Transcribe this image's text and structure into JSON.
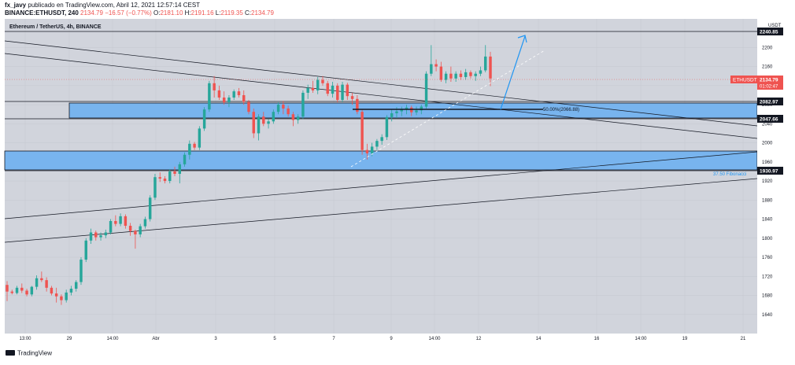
{
  "header": {
    "author": "fx_javy",
    "published": "publicado en TradingView.com, Abril 12, 2021 12:57:14 CEST",
    "symbol": "BINANCE:ETHUSDT, 240",
    "last": "2134.79",
    "change": "−16.57 (−0.77%)",
    "o_label": "O:",
    "o": "2181.10",
    "h_label": "H:",
    "h": "2191.16",
    "l_label": "L:",
    "l": "2119.35",
    "c_label": "C:",
    "c": "2134.79"
  },
  "colors": {
    "up": "#26a69a",
    "down": "#ef5350",
    "zone": "#78b4ee",
    "accent": "#2196f3",
    "bg": "#d1d4dc",
    "grid": "#c5c8d0",
    "line": "#131722"
  },
  "chart_data": {
    "type": "candlestick",
    "title": "Ethereum / TetherUS, 4h, BINANCE",
    "currency": "USDT",
    "ylim": [
      1600,
      2260
    ],
    "y_ticks": [
      1640,
      1680,
      1720,
      1760,
      1800,
      1840,
      1880,
      1920,
      1960,
      2000,
      2040,
      2080,
      2120,
      2160,
      2200
    ],
    "x_ticks": [
      "13:00",
      "29",
      "14:00",
      "Abr",
      "3",
      "5",
      "7",
      "9",
      "14:00",
      "12",
      "14",
      "16",
      "14:00",
      "19",
      "21"
    ],
    "price_labels": {
      "top": "2240.85",
      "symbol": "ETHUSDT",
      "last": "2134.79",
      "countdown": "01:02:47",
      "zone_top": "2082.97",
      "zone_bottom": "2047.66",
      "support": "1930.97"
    },
    "annotations": {
      "fib50": "50.00%(2066.88)",
      "fib375": "37.50 Fibonacci"
    },
    "candles": [
      [
        1702,
        1710,
        1668,
        1688
      ],
      [
        1688,
        1692,
        1682,
        1685
      ],
      [
        1685,
        1700,
        1682,
        1696
      ],
      [
        1696,
        1705,
        1685,
        1690
      ],
      [
        1690,
        1694,
        1678,
        1682
      ],
      [
        1682,
        1700,
        1678,
        1698
      ],
      [
        1698,
        1722,
        1692,
        1716
      ],
      [
        1716,
        1730,
        1708,
        1712
      ],
      [
        1712,
        1718,
        1688,
        1696
      ],
      [
        1696,
        1700,
        1680,
        1684
      ],
      [
        1684,
        1696,
        1665,
        1678
      ],
      [
        1678,
        1682,
        1660,
        1670
      ],
      [
        1670,
        1692,
        1665,
        1686
      ],
      [
        1686,
        1700,
        1680,
        1694
      ],
      [
        1694,
        1712,
        1688,
        1708
      ],
      [
        1708,
        1760,
        1702,
        1755
      ],
      [
        1755,
        1800,
        1750,
        1795
      ],
      [
        1795,
        1820,
        1788,
        1812
      ],
      [
        1812,
        1816,
        1795,
        1802
      ],
      [
        1802,
        1812,
        1795,
        1806
      ],
      [
        1806,
        1818,
        1800,
        1812
      ],
      [
        1812,
        1840,
        1808,
        1836
      ],
      [
        1836,
        1848,
        1825,
        1830
      ],
      [
        1830,
        1852,
        1825,
        1846
      ],
      [
        1846,
        1850,
        1820,
        1826
      ],
      [
        1826,
        1832,
        1805,
        1815
      ],
      [
        1815,
        1818,
        1778,
        1808
      ],
      [
        1808,
        1830,
        1802,
        1825
      ],
      [
        1825,
        1845,
        1820,
        1840
      ],
      [
        1840,
        1890,
        1835,
        1885
      ],
      [
        1885,
        1935,
        1880,
        1928
      ],
      [
        1928,
        1938,
        1918,
        1925
      ],
      [
        1925,
        1930,
        1915,
        1920
      ],
      [
        1920,
        1945,
        1915,
        1940
      ],
      [
        1940,
        1950,
        1930,
        1935
      ],
      [
        1935,
        1960,
        1915,
        1955
      ],
      [
        1955,
        1980,
        1950,
        1975
      ],
      [
        1975,
        2005,
        1965,
        1998
      ],
      [
        1998,
        2002,
        1985,
        1990
      ],
      [
        1990,
        2035,
        1985,
        2030
      ],
      [
        2030,
        2075,
        2025,
        2070
      ],
      [
        2070,
        2130,
        2065,
        2125
      ],
      [
        2125,
        2140,
        2095,
        2110
      ],
      [
        2110,
        2120,
        2090,
        2095
      ],
      [
        2095,
        2108,
        2080,
        2085
      ],
      [
        2085,
        2100,
        2075,
        2095
      ],
      [
        2095,
        2112,
        2090,
        2108
      ],
      [
        2108,
        2115,
        2095,
        2100
      ],
      [
        2100,
        2110,
        2080,
        2086
      ],
      [
        2086,
        2090,
        2060,
        2065
      ],
      [
        2065,
        2072,
        2010,
        2020
      ],
      [
        2020,
        2060,
        2005,
        2055
      ],
      [
        2055,
        2065,
        2035,
        2040
      ],
      [
        2040,
        2050,
        2030,
        2045
      ],
      [
        2045,
        2070,
        2040,
        2065
      ],
      [
        2065,
        2085,
        2060,
        2080
      ],
      [
        2080,
        2088,
        2060,
        2072
      ],
      [
        2072,
        2078,
        2055,
        2060
      ],
      [
        2060,
        2065,
        2035,
        2048
      ],
      [
        2048,
        2060,
        2040,
        2055
      ],
      [
        2055,
        2110,
        2050,
        2105
      ],
      [
        2105,
        2122,
        2092,
        2115
      ],
      [
        2115,
        2130,
        2105,
        2110
      ],
      [
        2110,
        2138,
        2102,
        2132
      ],
      [
        2132,
        2140,
        2120,
        2125
      ],
      [
        2125,
        2130,
        2098,
        2103
      ],
      [
        2103,
        2128,
        2095,
        2120
      ],
      [
        2120,
        2125,
        2085,
        2090
      ],
      [
        2090,
        2128,
        2085,
        2122
      ],
      [
        2122,
        2126,
        2090,
        2098
      ],
      [
        2098,
        2105,
        2080,
        2092
      ],
      [
        2092,
        2100,
        2060,
        2065
      ],
      [
        2065,
        2070,
        1975,
        1985
      ],
      [
        1985,
        1998,
        1965,
        1978
      ],
      [
        1978,
        2000,
        1972,
        1992
      ],
      [
        1992,
        2008,
        1985,
        2004
      ],
      [
        2004,
        2018,
        1996,
        2012
      ],
      [
        2012,
        2058,
        2006,
        2054
      ],
      [
        2054,
        2070,
        2045,
        2062
      ],
      [
        2062,
        2075,
        2052,
        2066
      ],
      [
        2066,
        2076,
        2056,
        2070
      ],
      [
        2070,
        2080,
        2060,
        2074
      ],
      [
        2074,
        2078,
        2056,
        2064
      ],
      [
        2064,
        2076,
        2058,
        2068
      ],
      [
        2068,
        2080,
        2060,
        2076
      ],
      [
        2076,
        2150,
        2072,
        2145
      ],
      [
        2145,
        2205,
        2140,
        2165
      ],
      [
        2165,
        2175,
        2150,
        2160
      ],
      [
        2160,
        2170,
        2128,
        2132
      ],
      [
        2132,
        2150,
        2125,
        2145
      ],
      [
        2145,
        2160,
        2128,
        2135
      ],
      [
        2135,
        2150,
        2128,
        2145
      ],
      [
        2145,
        2152,
        2132,
        2138
      ],
      [
        2138,
        2155,
        2132,
        2148
      ],
      [
        2148,
        2152,
        2135,
        2140
      ],
      [
        2140,
        2150,
        2130,
        2145
      ],
      [
        2145,
        2160,
        2140,
        2152
      ],
      [
        2152,
        2205,
        2148,
        2181
      ],
      [
        2181,
        2191,
        2119,
        2135
      ]
    ]
  }
}
